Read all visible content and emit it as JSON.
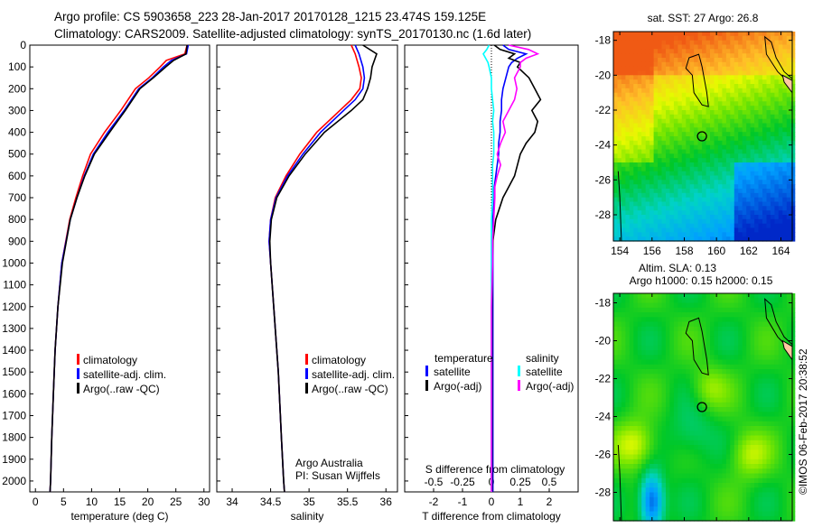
{
  "header": {
    "title_line1": "Argo profile: CS 5903658_223 28-Jan-2017 20170128_1215 23.474S 159.125E",
    "title_line2": "Climatology: CARS2009. Satellite-adjusted climatology: synTS_20170130.nc (1.6d later)"
  },
  "footer": {
    "credit": "©IMOS 06-Feb-2017 20:38:52"
  },
  "colors": {
    "climatology": "#ff0000",
    "satellite": "#0000ff",
    "argo": "#000000",
    "sat_salinity": "#00ffff",
    "argo_salinity": "#ff00ff"
  },
  "chart_data": [
    {
      "type": "line",
      "id": "temperature",
      "xlabel": "temperature (deg C)",
      "xlim": [
        -1,
        31
      ],
      "ylim": [
        2050,
        0
      ],
      "xticks": [
        0,
        5,
        10,
        15,
        20,
        25,
        30
      ],
      "yticks": [
        0,
        100,
        200,
        300,
        400,
        500,
        600,
        700,
        800,
        900,
        1000,
        1100,
        1200,
        1300,
        1400,
        1500,
        1600,
        1700,
        1800,
        1900,
        2000
      ],
      "depth": [
        0,
        40,
        70,
        100,
        150,
        200,
        300,
        400,
        500,
        600,
        700,
        800,
        1000,
        1200,
        1400,
        1600,
        1800,
        2000,
        2050
      ],
      "series": [
        {
          "name": "climatology",
          "color": "#ff0000",
          "values": [
            27,
            26.6,
            23.3,
            22.2,
            20.2,
            17.8,
            15.2,
            12.3,
            9.8,
            8.4,
            7.2,
            6.1,
            4.7,
            4.0,
            3.5,
            3.2,
            2.9,
            2.7,
            2.6
          ]
        },
        {
          "name": "satellite-adj. clim.",
          "color": "#0000ff",
          "values": [
            27.2,
            26.9,
            24.2,
            22.8,
            20.8,
            18.4,
            15.8,
            12.9,
            10.3,
            8.7,
            7.4,
            6.2,
            4.7,
            4.0,
            3.5,
            3.2,
            2.9,
            2.7,
            2.6
          ]
        },
        {
          "name": "Argo(..raw -QC)",
          "color": "#000000",
          "values": [
            27.0,
            26.8,
            24.6,
            23.2,
            21.0,
            18.6,
            16.0,
            13.2,
            10.5,
            8.8,
            7.4,
            6.2,
            4.8,
            4.0,
            3.5,
            3.2,
            2.9,
            2.7,
            2.6
          ]
        }
      ],
      "legend": [
        "climatology",
        "satellite-adj. clim.",
        "Argo(..raw -QC)"
      ],
      "legend_position": "lower-center"
    },
    {
      "type": "line",
      "id": "salinity",
      "xlabel": "salinity",
      "xlim": [
        33.8,
        36.15
      ],
      "ylim": [
        2050,
        0
      ],
      "xticks": [
        34,
        34.5,
        35,
        35.5,
        36
      ],
      "depth": [
        0,
        40,
        100,
        150,
        200,
        250,
        300,
        400,
        500,
        600,
        700,
        800,
        900,
        1000,
        1200,
        1500,
        1800,
        2000,
        2050
      ],
      "series": [
        {
          "name": "climatology",
          "color": "#ff0000",
          "values": [
            35.55,
            35.6,
            35.65,
            35.68,
            35.66,
            35.55,
            35.4,
            35.1,
            34.88,
            34.7,
            34.56,
            34.5,
            34.48,
            34.5,
            34.54,
            34.6,
            34.64,
            34.67,
            34.68
          ]
        },
        {
          "name": "satellite-adj. clim.",
          "color": "#0000ff",
          "values": [
            35.6,
            35.65,
            35.7,
            35.72,
            35.7,
            35.6,
            35.45,
            35.15,
            34.92,
            34.72,
            34.57,
            34.5,
            34.48,
            34.5,
            34.54,
            34.6,
            34.64,
            34.67,
            34.68
          ]
        },
        {
          "name": "Argo(..raw -QC)",
          "color": "#000000",
          "values": [
            35.7,
            35.88,
            35.82,
            35.8,
            35.76,
            35.7,
            35.55,
            35.2,
            34.95,
            34.74,
            34.58,
            34.51,
            34.49,
            34.5,
            34.54,
            34.6,
            34.64,
            34.67,
            34.68
          ]
        }
      ],
      "legend": [
        "climatology",
        "satellite-adj. clim.",
        "Argo(..raw -QC)"
      ],
      "annotation": [
        "Argo Australia",
        "PI: Susan Wijffels"
      ]
    },
    {
      "type": "line",
      "id": "differences",
      "xlabel": "T difference from climatology",
      "xlabel2": "S difference from climatology",
      "xlim": [
        -3,
        3
      ],
      "xticks": [
        -2,
        -1,
        0,
        1,
        2
      ],
      "xticks2_labels": [
        "-0.5",
        "-0.25",
        "0",
        "0.25",
        "0.5"
      ],
      "xticks2": [
        -0.5,
        -0.25,
        0,
        0.25,
        0.5
      ],
      "ylim": [
        2050,
        0
      ],
      "depth": [
        0,
        20,
        40,
        60,
        80,
        100,
        150,
        200,
        250,
        300,
        350,
        400,
        450,
        500,
        550,
        600,
        650,
        700,
        800,
        900,
        1000,
        1200,
        1500,
        2000,
        2050
      ],
      "series": [
        {
          "name": "T satellite",
          "axis": "T",
          "color": "#0000ff",
          "values": [
            0.4,
            0.6,
            1.2,
            0.9,
            0.7,
            0.6,
            0.5,
            0.4,
            0.35,
            0.35,
            0.3,
            0.3,
            0.25,
            0.25,
            0.2,
            0.15,
            0.1,
            0.1,
            0.05,
            0.05,
            0.05,
            0.05,
            0.05,
            0.05,
            0.05
          ]
        },
        {
          "name": "T Argo(-adj)",
          "axis": "T",
          "color": "#000000",
          "values": [
            0.1,
            0.3,
            0.8,
            0.6,
            1.0,
            0.9,
            1.3,
            1.5,
            1.7,
            1.4,
            1.6,
            1.5,
            1.2,
            1.0,
            0.9,
            0.8,
            0.6,
            0.4,
            0.15,
            0.05,
            0.03,
            0.02,
            0.02,
            0.02,
            0.02
          ]
        },
        {
          "name": "S satellite",
          "axis": "S",
          "color": "#00ffff",
          "values": [
            -0.02,
            -0.04,
            -0.07,
            -0.05,
            -0.03,
            -0.02,
            0,
            0,
            0.01,
            0.02,
            0.01,
            0.02,
            0.02,
            0.02,
            0.01,
            0.01,
            0.01,
            0.01,
            0,
            0,
            0,
            0,
            0,
            0,
            0
          ]
        },
        {
          "name": "S Argo(-adj)",
          "axis": "S",
          "color": "#ff00ff",
          "values": [
            0.15,
            0.32,
            0.4,
            0.3,
            0.25,
            0.25,
            0.2,
            0.22,
            0.2,
            0.15,
            0.1,
            0.12,
            0.08,
            0.05,
            0.08,
            0.05,
            0.03,
            0.03,
            0.02,
            0.01,
            0.01,
            0,
            0,
            0,
            0
          ]
        }
      ],
      "legend_headers": [
        "temperature",
        "salinity"
      ],
      "legend": [
        {
          "label": "satellite",
          "color": "#0000ff"
        },
        {
          "label": "Argo(-adj)",
          "color": "#000000"
        },
        {
          "label": "satellite",
          "color": "#00ffff"
        },
        {
          "label": "Argo(-adj)",
          "color": "#ff00ff"
        }
      ]
    },
    {
      "type": "heatmap",
      "id": "sst_map",
      "title": "sat. SST: 27 Argo: 26.8",
      "xlim": [
        153.6,
        164.7
      ],
      "ylim": [
        -29.5,
        -17.5
      ],
      "xticks": [
        154,
        156,
        158,
        160,
        162,
        164
      ],
      "yticks": [
        -18,
        -20,
        -22,
        -24,
        -26,
        -28
      ],
      "marker": {
        "lon": 159.1,
        "lat": -23.5
      }
    },
    {
      "type": "heatmap",
      "id": "sla_map",
      "title": "Altim. SLA: 0.13",
      "subtitle": "Argo h1000: 0.15 h2000: 0.15",
      "xlim": [
        153.6,
        164.7
      ],
      "ylim": [
        -29.5,
        -17.5
      ],
      "xticks": [
        154,
        156,
        158,
        160,
        162,
        164
      ],
      "yticks": [
        -18,
        -20,
        -22,
        -24,
        -26,
        -28
      ],
      "marker": {
        "lon": 159.1,
        "lat": -23.5
      }
    }
  ]
}
